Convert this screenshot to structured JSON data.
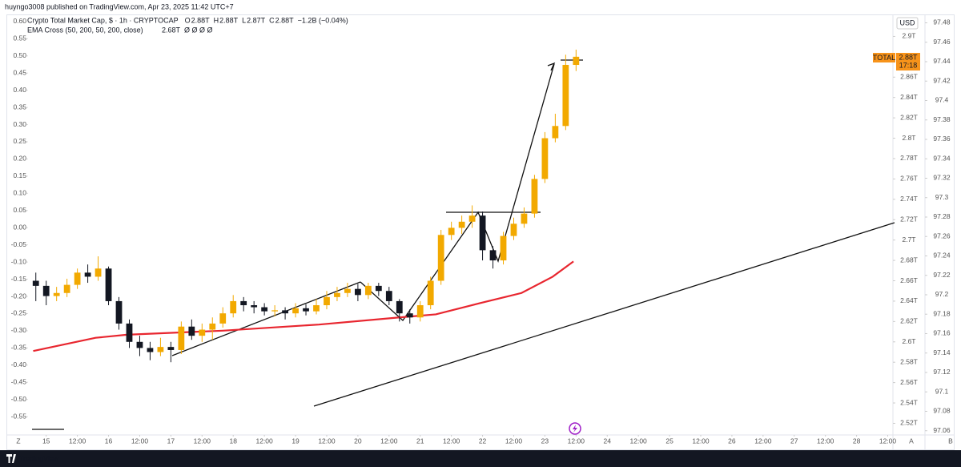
{
  "header": {
    "publisher": "huyngo3008 published on TradingView.com, Apr 23, 2025 11:42 UTC+7"
  },
  "footer": {
    "brand": "TradingView",
    "corner_left": "Z",
    "corner_a": "A",
    "corner_b": "B"
  },
  "chart_data": {
    "type": "candlestick",
    "title": "Crypto Total Market Cap, $ · 1h · CRYPTOCAP",
    "ohlc": [
      {
        "key": "O",
        "value": "2.88T"
      },
      {
        "key": "H",
        "value": "2.88T"
      },
      {
        "key": "L",
        "value": "2.87T"
      },
      {
        "key": "C",
        "value": "2.88T"
      }
    ],
    "change": "−1.2B (−0.04%)",
    "indicator": {
      "name": "EMA Cross (50, 200, 50, 200, close)",
      "value": "2.68T",
      "extra": "Ø Ø Ø Ø"
    },
    "currency": "USD",
    "price_label": {
      "symbol": "TOTAL",
      "price": "2.88T",
      "countdown": "17:18"
    },
    "xlim": [
      -7,
      326
    ],
    "xticks": [
      {
        "value": 0,
        "label": "15"
      },
      {
        "value": 12,
        "label": "12:00"
      },
      {
        "value": 24,
        "label": "16"
      },
      {
        "value": 36,
        "label": "12:00"
      },
      {
        "value": 48,
        "label": "17"
      },
      {
        "value": 60,
        "label": "12:00"
      },
      {
        "value": 72,
        "label": "18"
      },
      {
        "value": 84,
        "label": "12:00"
      },
      {
        "value": 96,
        "label": "19"
      },
      {
        "value": 108,
        "label": "12:00"
      },
      {
        "value": 120,
        "label": "20"
      },
      {
        "value": 132,
        "label": "12:00"
      },
      {
        "value": 144,
        "label": "21"
      },
      {
        "value": 156,
        "label": "12:00"
      },
      {
        "value": 168,
        "label": "22"
      },
      {
        "value": 180,
        "label": "12:00"
      },
      {
        "value": 192,
        "label": "23"
      },
      {
        "value": 204,
        "label": "12:00"
      },
      {
        "value": 216,
        "label": "24"
      },
      {
        "value": 228,
        "label": "12:00"
      },
      {
        "value": 240,
        "label": "25"
      },
      {
        "value": 252,
        "label": "12:00"
      },
      {
        "value": 264,
        "label": "26"
      },
      {
        "value": 276,
        "label": "12:00"
      },
      {
        "value": 288,
        "label": "27"
      },
      {
        "value": 300,
        "label": "12:00"
      },
      {
        "value": 312,
        "label": "28"
      },
      {
        "value": 324,
        "label": "12:00"
      }
    ],
    "ylim": [
      2.507,
      2.92
    ],
    "yticks": [
      {
        "value": 2.9,
        "label": "2.9T"
      },
      {
        "value": 2.86,
        "label": "2.86T"
      },
      {
        "value": 2.84,
        "label": "2.84T"
      },
      {
        "value": 2.82,
        "label": "2.82T"
      },
      {
        "value": 2.8,
        "label": "2.8T"
      },
      {
        "value": 2.78,
        "label": "2.78T"
      },
      {
        "value": 2.76,
        "label": "2.76T"
      },
      {
        "value": 2.74,
        "label": "2.74T"
      },
      {
        "value": 2.72,
        "label": "2.72T"
      },
      {
        "value": 2.7,
        "label": "2.7T"
      },
      {
        "value": 2.68,
        "label": "2.68T"
      },
      {
        "value": 2.66,
        "label": "2.66T"
      },
      {
        "value": 2.64,
        "label": "2.64T"
      },
      {
        "value": 2.62,
        "label": "2.62T"
      },
      {
        "value": 2.6,
        "label": "2.6T"
      },
      {
        "value": 2.58,
        "label": "2.58T"
      },
      {
        "value": 2.56,
        "label": "2.56T"
      },
      {
        "value": 2.54,
        "label": "2.54T"
      },
      {
        "value": 2.52,
        "label": "2.52T"
      }
    ],
    "y2lim": [
      -0.608,
      0.616
    ],
    "y2ticks": [
      {
        "value": 0.6,
        "label": "0.60"
      },
      0.55,
      {
        "value": 0.5,
        "label": "0.50"
      },
      0.45,
      {
        "value": 0.4,
        "label": "0.40"
      },
      0.35,
      {
        "value": 0.3,
        "label": "0.30"
      },
      0.25,
      {
        "value": 0.2,
        "label": "0.20"
      },
      0.15,
      {
        "value": 0.1,
        "label": "0.10"
      },
      0.05,
      {
        "value": 0,
        "label": "0.00"
      },
      -0.05,
      {
        "value": -0.1,
        "label": "-0.10"
      },
      -0.15,
      {
        "value": -0.2,
        "label": "-0.20"
      },
      -0.25,
      {
        "value": -0.3,
        "label": "-0.30"
      },
      -0.35,
      {
        "value": -0.4,
        "label": "-0.40"
      },
      -0.45,
      {
        "value": -0.5,
        "label": "-0.50"
      },
      -0.55
    ],
    "y3lim": [
      97.054,
      97.487
    ],
    "y3ticks": [
      97.48,
      97.46,
      97.44,
      97.42,
      97.4,
      97.38,
      97.36,
      97.34,
      97.32,
      97.3,
      97.28,
      97.26,
      97.24,
      97.22,
      97.2,
      97.18,
      97.16,
      97.14,
      97.12,
      97.1,
      97.08,
      97.06
    ],
    "grid": false,
    "series": [
      {
        "name": "Crypto Total Market Cap",
        "up_color": "#f2a900",
        "down_color": "#131722",
        "x": [
          -4,
          0,
          4,
          8,
          12,
          16,
          20,
          24,
          28,
          32,
          36,
          40,
          44,
          48,
          52,
          56,
          60,
          64,
          68,
          72,
          76,
          80,
          84,
          88,
          92,
          96,
          100,
          104,
          108,
          112,
          116,
          120,
          124,
          128,
          132,
          136,
          140,
          144,
          148,
          152,
          156,
          160,
          164,
          168,
          172,
          176,
          180,
          184,
          188,
          192,
          196,
          200,
          204
        ],
        "open": [
          2.66,
          2.655,
          2.645,
          2.648,
          2.656,
          2.668,
          2.664,
          2.672,
          2.64,
          2.618,
          2.6,
          2.594,
          2.59,
          2.595,
          2.592,
          2.615,
          2.606,
          2.612,
          2.618,
          2.628,
          2.64,
          2.636,
          2.634,
          2.63,
          2.631,
          2.628,
          2.633,
          2.63,
          2.636,
          2.644,
          2.648,
          2.652,
          2.646,
          2.655,
          2.65,
          2.64,
          2.628,
          2.624,
          2.636,
          2.66,
          2.705,
          2.712,
          2.718,
          2.724,
          2.69,
          2.68,
          2.704,
          2.716,
          2.726,
          2.76,
          2.8,
          2.812,
          2.872
        ],
        "high": [
          2.668,
          2.66,
          2.654,
          2.662,
          2.672,
          2.676,
          2.684,
          2.674,
          2.644,
          2.622,
          2.606,
          2.6,
          2.604,
          2.6,
          2.62,
          2.622,
          2.618,
          2.624,
          2.634,
          2.646,
          2.644,
          2.64,
          2.638,
          2.636,
          2.634,
          2.638,
          2.637,
          2.642,
          2.65,
          2.654,
          2.658,
          2.657,
          2.658,
          2.658,
          2.654,
          2.642,
          2.632,
          2.64,
          2.664,
          2.71,
          2.718,
          2.724,
          2.734,
          2.728,
          2.694,
          2.708,
          2.722,
          2.732,
          2.764,
          2.806,
          2.824,
          2.882,
          2.887
        ],
        "low": [
          2.64,
          2.636,
          2.64,
          2.644,
          2.652,
          2.658,
          2.66,
          2.636,
          2.612,
          2.594,
          2.586,
          2.582,
          2.586,
          2.58,
          2.588,
          2.602,
          2.6,
          2.602,
          2.614,
          2.624,
          2.63,
          2.628,
          2.626,
          2.625,
          2.622,
          2.624,
          2.626,
          2.627,
          2.632,
          2.64,
          2.644,
          2.64,
          2.642,
          2.645,
          2.636,
          2.62,
          2.618,
          2.62,
          2.632,
          2.656,
          2.7,
          2.706,
          2.712,
          2.68,
          2.672,
          2.676,
          2.7,
          2.712,
          2.722,
          2.756,
          2.796,
          2.808,
          2.866
        ],
        "close": [
          2.655,
          2.645,
          2.648,
          2.656,
          2.668,
          2.664,
          2.672,
          2.64,
          2.618,
          2.6,
          2.594,
          2.59,
          2.595,
          2.592,
          2.615,
          2.606,
          2.612,
          2.618,
          2.628,
          2.64,
          2.636,
          2.634,
          2.63,
          2.631,
          2.628,
          2.633,
          2.63,
          2.636,
          2.644,
          2.648,
          2.652,
          2.646,
          2.655,
          2.65,
          2.64,
          2.628,
          2.624,
          2.636,
          2.66,
          2.705,
          2.712,
          2.718,
          2.724,
          2.69,
          2.68,
          2.704,
          2.716,
          2.726,
          2.76,
          2.8,
          2.812,
          2.872,
          2.88
        ]
      },
      {
        "name": "EMA",
        "color": "#e8262f",
        "x": [
          -5,
          19,
          31,
          68,
          105,
          136,
          150,
          167,
          183,
          195,
          203
        ],
        "values": [
          2.591,
          2.604,
          2.607,
          2.611,
          2.617,
          2.624,
          2.627,
          2.638,
          2.648,
          2.664,
          2.679
        ]
      }
    ]
  }
}
